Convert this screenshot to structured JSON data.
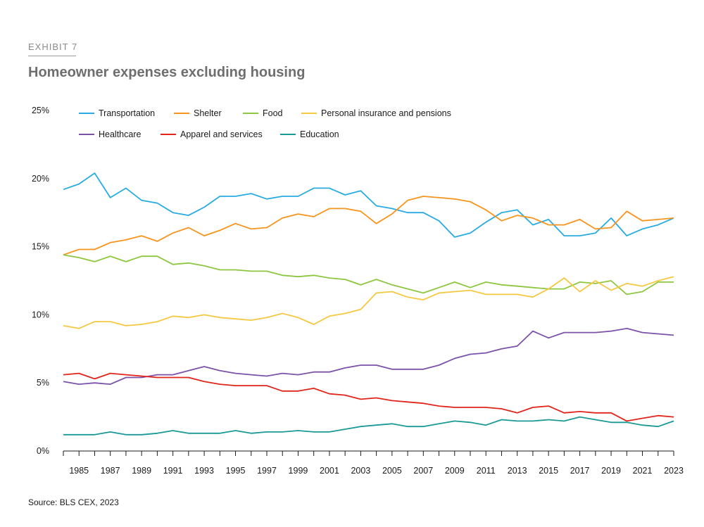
{
  "exhibit_label": "EXHIBIT 7",
  "title": "Homeowner expenses excluding housing",
  "source": "Source: BLS CEX, 2023",
  "chart_data": {
    "type": "line",
    "title": "Homeowner expenses excluding housing",
    "xlabel": "",
    "ylabel": "",
    "xlim": [
      1984,
      2023
    ],
    "ylim": [
      0,
      25
    ],
    "x": [
      1984,
      1985,
      1986,
      1987,
      1988,
      1989,
      1990,
      1991,
      1992,
      1993,
      1994,
      1995,
      1996,
      1997,
      1998,
      1999,
      2000,
      2001,
      2002,
      2003,
      2004,
      2005,
      2006,
      2007,
      2008,
      2009,
      2010,
      2011,
      2012,
      2013,
      2014,
      2015,
      2016,
      2017,
      2018,
      2019,
      2020,
      2021,
      2022,
      2023
    ],
    "x_tick_labels": [
      "1985",
      "1987",
      "1989",
      "1991",
      "1993",
      "1995",
      "1997",
      "1999",
      "2001",
      "2003",
      "2005",
      "2007",
      "2009",
      "2011",
      "2013",
      "2015",
      "2017",
      "2019",
      "2021",
      "2023"
    ],
    "x_tick_values": [
      1985,
      1987,
      1989,
      1991,
      1993,
      1995,
      1997,
      1999,
      2001,
      2003,
      2005,
      2007,
      2009,
      2011,
      2013,
      2015,
      2017,
      2019,
      2021,
      2023
    ],
    "y_tick_values": [
      0,
      5,
      10,
      15,
      20,
      25
    ],
    "y_tick_labels": [
      "0%",
      "5%",
      "10%",
      "15%",
      "20%",
      "25%"
    ],
    "grid": false,
    "legend_position": "top-left",
    "series": [
      {
        "name": "Transportation",
        "color": "#29abe2",
        "values": [
          19.2,
          19.6,
          20.4,
          18.6,
          19.3,
          18.4,
          18.2,
          17.5,
          17.3,
          17.9,
          18.7,
          18.7,
          18.9,
          18.5,
          18.7,
          18.7,
          19.3,
          19.3,
          18.8,
          19.1,
          18.0,
          17.8,
          17.5,
          17.5,
          16.9,
          15.7,
          16.0,
          16.8,
          17.5,
          17.7,
          16.6,
          17.0,
          15.8,
          15.8,
          16.0,
          17.1,
          15.8,
          16.3,
          16.6,
          17.1
        ]
      },
      {
        "name": "Shelter",
        "color": "#f7941d",
        "values": [
          14.4,
          14.8,
          14.8,
          15.3,
          15.5,
          15.8,
          15.4,
          16.0,
          16.4,
          15.8,
          16.2,
          16.7,
          16.3,
          16.4,
          17.1,
          17.4,
          17.2,
          17.8,
          17.8,
          17.6,
          16.7,
          17.4,
          18.4,
          18.7,
          18.6,
          18.5,
          18.3,
          17.7,
          16.9,
          17.3,
          17.1,
          16.6,
          16.6,
          17.0,
          16.3,
          16.4,
          17.6,
          16.9,
          17.0,
          17.1
        ]
      },
      {
        "name": "Food",
        "color": "#8dc63f",
        "values": [
          14.4,
          14.2,
          13.9,
          14.3,
          13.9,
          14.3,
          14.3,
          13.7,
          13.8,
          13.6,
          13.3,
          13.3,
          13.2,
          13.2,
          12.9,
          12.8,
          12.9,
          12.7,
          12.6,
          12.2,
          12.6,
          12.2,
          11.9,
          11.6,
          12.0,
          12.4,
          12.0,
          12.4,
          12.2,
          12.1,
          12.0,
          11.9,
          11.9,
          12.4,
          12.3,
          12.5,
          11.5,
          11.7,
          12.4,
          12.4
        ]
      },
      {
        "name": "Personal insurance and pensions",
        "color": "#f5c842",
        "values": [
          9.2,
          9.0,
          9.5,
          9.5,
          9.2,
          9.3,
          9.5,
          9.9,
          9.8,
          10.0,
          9.8,
          9.7,
          9.6,
          9.8,
          10.1,
          9.8,
          9.3,
          9.9,
          10.1,
          10.4,
          11.6,
          11.7,
          11.3,
          11.1,
          11.6,
          11.7,
          11.8,
          11.5,
          11.5,
          11.5,
          11.3,
          11.9,
          12.7,
          11.7,
          12.5,
          11.8,
          12.3,
          12.1,
          12.5,
          12.8
        ]
      },
      {
        "name": "Healthcare",
        "color": "#7b52a8",
        "values": [
          5.1,
          4.9,
          5.0,
          4.9,
          5.4,
          5.4,
          5.6,
          5.6,
          5.9,
          6.2,
          5.9,
          5.7,
          5.6,
          5.5,
          5.7,
          5.6,
          5.8,
          5.8,
          6.1,
          6.3,
          6.3,
          6.0,
          6.0,
          6.0,
          6.3,
          6.8,
          7.1,
          7.2,
          7.5,
          7.7,
          8.8,
          8.3,
          8.7,
          8.7,
          8.7,
          8.8,
          9.0,
          8.7,
          8.6,
          8.5
        ]
      },
      {
        "name": "Apparel and services",
        "color": "#e1251b",
        "values": [
          5.6,
          5.7,
          5.3,
          5.7,
          5.6,
          5.5,
          5.4,
          5.4,
          5.4,
          5.1,
          4.9,
          4.8,
          4.8,
          4.8,
          4.4,
          4.4,
          4.6,
          4.2,
          4.1,
          3.8,
          3.9,
          3.7,
          3.6,
          3.5,
          3.3,
          3.2,
          3.2,
          3.2,
          3.1,
          2.8,
          3.2,
          3.3,
          2.8,
          2.9,
          2.8,
          2.8,
          2.2,
          2.4,
          2.6,
          2.5
        ]
      },
      {
        "name": "Education",
        "color": "#1a9a96",
        "values": [
          1.2,
          1.2,
          1.2,
          1.4,
          1.2,
          1.2,
          1.3,
          1.5,
          1.3,
          1.3,
          1.3,
          1.5,
          1.3,
          1.4,
          1.4,
          1.5,
          1.4,
          1.4,
          1.6,
          1.8,
          1.9,
          2.0,
          1.8,
          1.8,
          2.0,
          2.2,
          2.1,
          1.9,
          2.3,
          2.2,
          2.2,
          2.3,
          2.2,
          2.5,
          2.3,
          2.1,
          2.1,
          1.9,
          1.8,
          2.2
        ]
      }
    ]
  }
}
